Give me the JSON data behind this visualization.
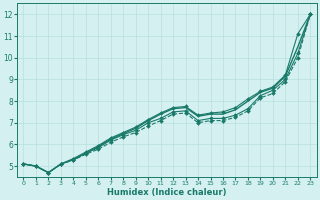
{
  "bg_color": "#d4f0f0",
  "grid_color": "#b8dede",
  "line_color": "#1a7a6a",
  "xlabel": "Humidex (Indice chaleur)",
  "xlim": [
    -0.5,
    23.5
  ],
  "ylim": [
    4.5,
    12.5
  ],
  "yticks": [
    5,
    6,
    7,
    8,
    9,
    10,
    11,
    12
  ],
  "xticks": [
    0,
    1,
    2,
    3,
    4,
    5,
    6,
    7,
    8,
    9,
    10,
    11,
    12,
    13,
    14,
    15,
    16,
    17,
    18,
    19,
    20,
    21,
    22,
    23
  ],
  "series": [
    {
      "x": [
        0,
        1,
        2,
        3,
        4,
        5,
        6,
        7,
        8,
        9,
        10,
        11,
        12,
        13,
        14,
        15,
        16,
        17,
        18,
        19,
        20,
        21,
        22,
        23
      ],
      "y": [
        5.1,
        5.0,
        4.7,
        5.1,
        5.3,
        5.6,
        5.9,
        6.25,
        6.5,
        6.75,
        7.1,
        7.4,
        7.65,
        7.7,
        7.3,
        7.4,
        7.4,
        7.6,
        8.0,
        8.4,
        8.6,
        9.15,
        10.5,
        12.0
      ],
      "style": "-",
      "marker": "",
      "markersize": 0,
      "linewidth": 1.0
    },
    {
      "x": [
        0,
        1,
        2,
        3,
        4,
        5,
        6,
        7,
        8,
        9,
        10,
        11,
        12,
        13,
        14,
        15,
        16,
        17,
        18,
        19,
        20,
        21,
        22,
        23
      ],
      "y": [
        5.1,
        5.0,
        4.7,
        5.1,
        5.35,
        5.65,
        5.95,
        6.3,
        6.55,
        6.8,
        7.15,
        7.45,
        7.7,
        7.75,
        7.35,
        7.45,
        7.5,
        7.7,
        8.1,
        8.45,
        8.65,
        9.2,
        11.1,
        12.0
      ],
      "style": "-",
      "marker": "D",
      "markersize": 2.0,
      "linewidth": 0.8
    },
    {
      "x": [
        0,
        1,
        2,
        3,
        4,
        5,
        6,
        7,
        8,
        9,
        10,
        11,
        12,
        13,
        14,
        15,
        16,
        17,
        18,
        19,
        20,
        21,
        22,
        23
      ],
      "y": [
        5.1,
        5.0,
        4.7,
        5.1,
        5.3,
        5.6,
        5.85,
        6.2,
        6.45,
        6.65,
        7.0,
        7.2,
        7.5,
        7.55,
        7.1,
        7.2,
        7.2,
        7.35,
        7.65,
        8.25,
        8.5,
        9.0,
        10.2,
        12.0
      ],
      "style": "-",
      "marker": "D",
      "markersize": 2.0,
      "linewidth": 0.8
    },
    {
      "x": [
        0,
        1,
        2,
        3,
        4,
        5,
        6,
        7,
        8,
        9,
        10,
        11,
        12,
        13,
        14,
        15,
        16,
        17,
        18,
        19,
        20,
        21,
        22,
        23
      ],
      "y": [
        5.1,
        5.0,
        4.7,
        5.1,
        5.28,
        5.55,
        5.78,
        6.1,
        6.35,
        6.55,
        6.85,
        7.1,
        7.4,
        7.45,
        7.0,
        7.1,
        7.1,
        7.25,
        7.55,
        8.15,
        8.35,
        8.9,
        10.0,
        12.0
      ],
      "style": "--",
      "marker": "D",
      "markersize": 2.0,
      "linewidth": 0.8
    }
  ]
}
